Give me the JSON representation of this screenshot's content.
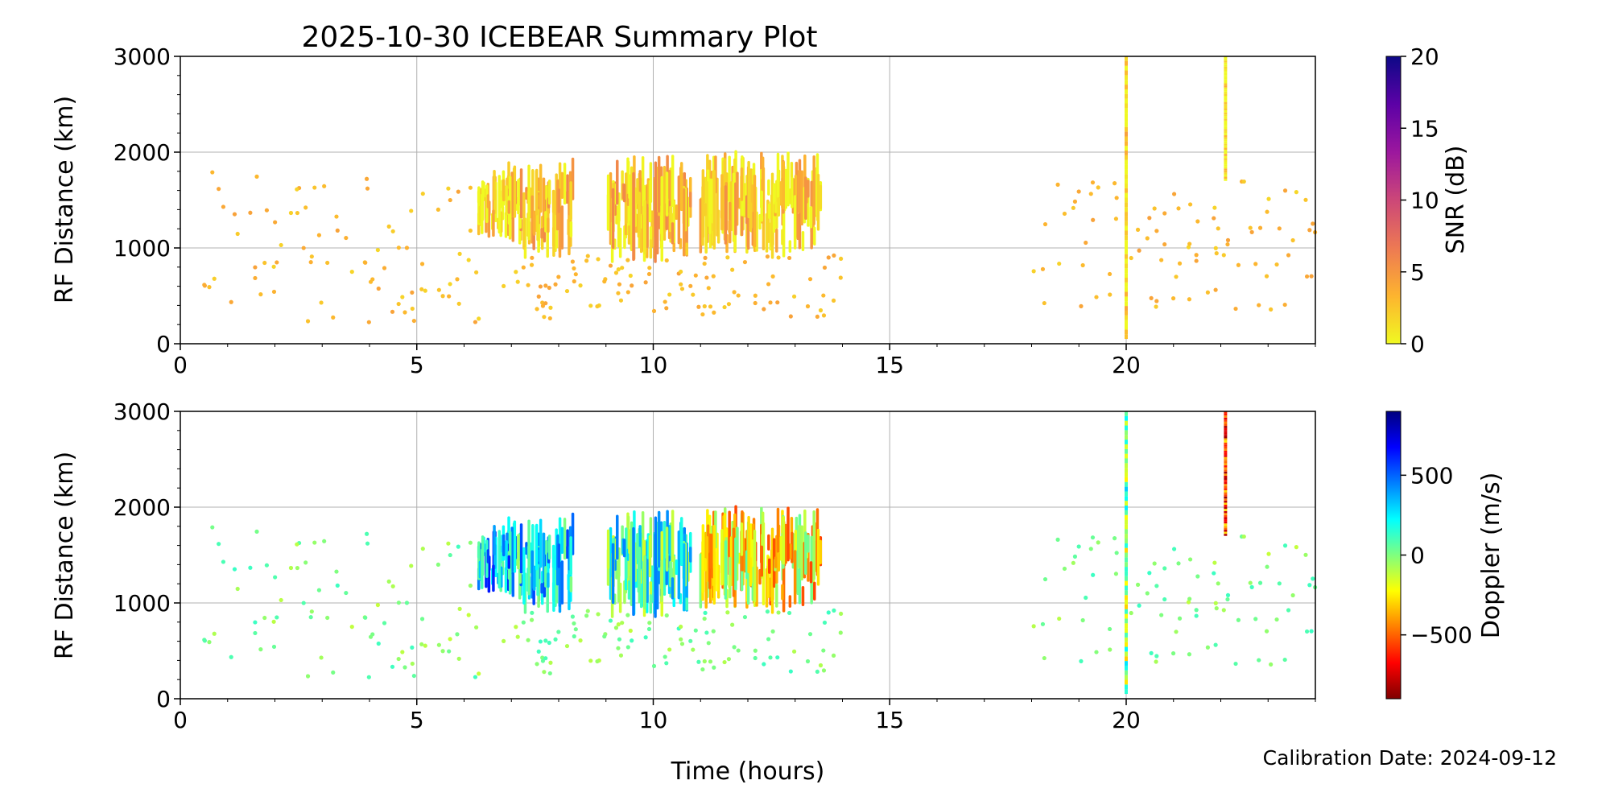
{
  "figure": {
    "title": "2025-10-30 ICEBEAR Summary Plot",
    "xlabel": "Time (hours)",
    "footer": "Calibration Date: 2024-09-12"
  },
  "colors": {
    "background": "#ffffff",
    "grid": "#b0b0b0",
    "axis": "#000000"
  },
  "chart_data": [
    {
      "type": "scatter",
      "name": "snr-panel",
      "title": "2025-10-30 ICEBEAR Summary Plot",
      "xlabel": "",
      "ylabel": "RF Distance (km)",
      "xlim": [
        0,
        24
      ],
      "ylim": [
        0,
        3000
      ],
      "xticks": [
        0,
        5,
        10,
        15,
        20
      ],
      "yticks": [
        0,
        1000,
        2000,
        3000
      ],
      "grid": true,
      "colorbar": {
        "label": "SNR (dB)",
        "colormap": "plasma_r",
        "range": [
          0,
          20
        ],
        "ticks": [
          0,
          5,
          10,
          15,
          20
        ],
        "stops": [
          "#f0f921",
          "#fdb42f",
          "#ed7953",
          "#cc4778",
          "#9c179e",
          "#5c01a6",
          "#0d0887"
        ]
      },
      "regions": [
        {
          "x": [
            6.9,
            8.3
          ],
          "y": [
            900,
            1950
          ],
          "value": 2.5
        },
        {
          "x": [
            9.0,
            10.8
          ],
          "y": [
            850,
            2000
          ],
          "value": 2.5
        },
        {
          "x": [
            11.0,
            13.6
          ],
          "y": [
            900,
            2050
          ],
          "value": 2.0
        },
        {
          "x": [
            6.3,
            7.0
          ],
          "y": [
            1100,
            1800
          ],
          "value": 1.5
        }
      ],
      "lines": [
        {
          "x": 20.0,
          "y": [
            50,
            3000
          ],
          "value": 1.0
        },
        {
          "x": 22.1,
          "y": [
            1700,
            3000
          ],
          "value": 0.5
        }
      ],
      "scatter_windows": [
        {
          "x": [
            0.5,
            6.5
          ],
          "y": [
            200,
            1800
          ],
          "value": 3.0
        },
        {
          "x": [
            6.8,
            14.0
          ],
          "y": [
            250,
            950
          ],
          "value": 3.0
        },
        {
          "x": [
            18.0,
            24.0
          ],
          "y": [
            300,
            1700
          ],
          "value": 3.0
        }
      ]
    },
    {
      "type": "scatter",
      "name": "doppler-panel",
      "title": "",
      "xlabel": "Time (hours)",
      "ylabel": "RF Distance (km)",
      "xlim": [
        0,
        24
      ],
      "ylim": [
        0,
        3000
      ],
      "xticks": [
        0,
        5,
        10,
        15,
        20
      ],
      "yticks": [
        0,
        1000,
        2000,
        3000
      ],
      "grid": true,
      "colorbar": {
        "label": "Doppler (m/s)",
        "colormap": "jet_r",
        "range": [
          -900,
          900
        ],
        "ticks": [
          -500,
          0,
          500
        ],
        "tick_labels": [
          "−500",
          "0",
          "500"
        ],
        "stops": [
          "#7f0000",
          "#ff0000",
          "#ff7f00",
          "#ffff00",
          "#7fff7f",
          "#00ffff",
          "#007fff",
          "#0000ff",
          "#00007f"
        ]
      },
      "regions": [
        {
          "x": [
            6.9,
            8.3
          ],
          "y": [
            900,
            1950
          ],
          "value": 250
        },
        {
          "x": [
            9.0,
            10.8
          ],
          "y": [
            850,
            2000
          ],
          "value": 150
        },
        {
          "x": [
            11.0,
            13.6
          ],
          "y": [
            900,
            2050
          ],
          "value": -250
        },
        {
          "x": [
            6.3,
            7.0
          ],
          "y": [
            1100,
            1800
          ],
          "value": 350
        }
      ],
      "lines": [
        {
          "x": 20.0,
          "y": [
            50,
            3000
          ],
          "value": 0
        },
        {
          "x": 22.1,
          "y": [
            1700,
            3000
          ],
          "value": -550
        }
      ],
      "scatter_windows": [
        {
          "x": [
            0.5,
            6.5
          ],
          "y": [
            200,
            1800
          ],
          "value": 0
        },
        {
          "x": [
            6.8,
            14.0
          ],
          "y": [
            250,
            950
          ],
          "value": 0
        },
        {
          "x": [
            18.0,
            24.0
          ],
          "y": [
            300,
            1700
          ],
          "value": 0
        }
      ]
    }
  ]
}
